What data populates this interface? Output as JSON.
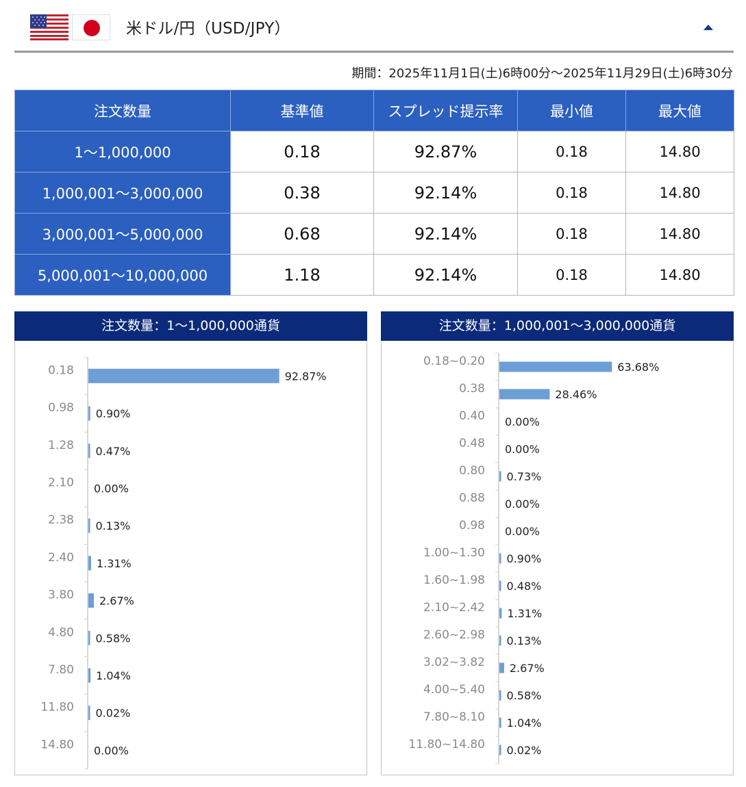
{
  "header": {
    "title": "米ドル/円（USD/JPY）",
    "flags": [
      "us-flag-icon",
      "jp-flag-icon"
    ],
    "collapse_icon": "caret-up-icon"
  },
  "period": "期間：2025年11月1日(土)6時00分～2025年11月29日(土)6時30分",
  "table": {
    "headers": [
      "注文数量",
      "基準値",
      "スプレッド提示率",
      "最小値",
      "最大値"
    ],
    "rows": [
      [
        "1～1,000,000",
        "0.18",
        "92.87%",
        "0.18",
        "14.80"
      ],
      [
        "1,000,001～3,000,000",
        "0.38",
        "92.14%",
        "0.18",
        "14.80"
      ],
      [
        "3,000,001～5,000,000",
        "0.68",
        "92.14%",
        "0.18",
        "14.80"
      ],
      [
        "5,000,001～10,000,000",
        "1.18",
        "92.14%",
        "0.18",
        "14.80"
      ]
    ]
  },
  "colors": {
    "header_blue": "#2b5fc0",
    "panel_navy": "#0b2a79",
    "bar": "#6d9ed6"
  },
  "chart_data": [
    {
      "type": "bar",
      "orientation": "horizontal",
      "title": "注文数量：1～1,000,000通貨",
      "categories": [
        "0.18",
        "0.98",
        "1.28",
        "2.10",
        "2.38",
        "2.40",
        "3.80",
        "4.80",
        "7.80",
        "11.80",
        "14.80"
      ],
      "values": [
        92.87,
        0.9,
        0.47,
        0.0,
        0.13,
        1.31,
        2.67,
        0.58,
        1.04,
        0.02,
        0.0
      ],
      "labels": [
        "92.87%",
        "0.90%",
        "0.47%",
        "0.00%",
        "0.13%",
        "1.31%",
        "2.67%",
        "0.58%",
        "1.04%",
        "0.02%",
        "0.00%"
      ],
      "xlim": [
        0,
        100
      ]
    },
    {
      "type": "bar",
      "orientation": "horizontal",
      "title": "注文数量：1,000,001～3,000,000通貨",
      "categories": [
        "0.18~0.20",
        "0.38",
        "0.40",
        "0.48",
        "0.80",
        "0.88",
        "0.98",
        "1.00~1.30",
        "1.60~1.98",
        "2.10~2.42",
        "2.60~2.98",
        "3.02~3.82",
        "4.00~5.40",
        "7.80~8.10",
        "11.80~14.80"
      ],
      "values": [
        63.68,
        28.46,
        0.0,
        0.0,
        0.73,
        0.0,
        0.0,
        0.9,
        0.48,
        1.31,
        0.13,
        2.67,
        0.58,
        1.04,
        0.02
      ],
      "labels": [
        "63.68%",
        "28.46%",
        "0.00%",
        "0.00%",
        "0.73%",
        "0.00%",
        "0.00%",
        "0.90%",
        "0.48%",
        "1.31%",
        "0.13%",
        "2.67%",
        "0.58%",
        "1.04%",
        "0.02%"
      ],
      "xlim": [
        0,
        100
      ]
    }
  ]
}
